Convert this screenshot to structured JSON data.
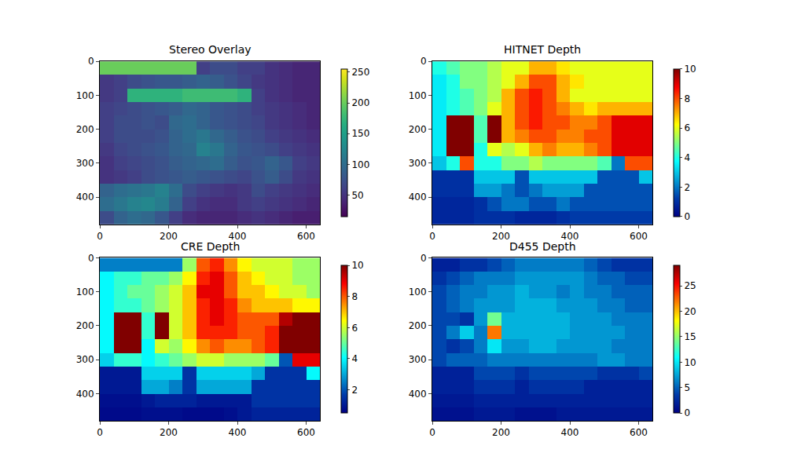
{
  "chart_data": [
    {
      "type": "heatmap",
      "title": "Stereo Overlay",
      "color": "viridis",
      "x": [
        20,
        60,
        100,
        140,
        180,
        220,
        260,
        300,
        340,
        380,
        420,
        460,
        500,
        540,
        580,
        620
      ],
      "y": [
        20,
        60,
        100,
        140,
        180,
        220,
        260,
        300,
        340,
        380,
        420,
        460
      ],
      "xlim": [
        0,
        640
      ],
      "ylim": [
        480,
        0
      ],
      "xticks": [
        0,
        200,
        400,
        600
      ],
      "yticks": [
        0,
        100,
        200,
        300,
        400
      ],
      "zlim": [
        15,
        255
      ],
      "zticks": [
        50,
        100,
        150,
        200,
        250
      ],
      "z": [
        [
          200,
          200,
          200,
          200,
          200,
          200,
          200,
          60,
          70,
          70,
          60,
          60,
          50,
          45,
          40,
          40
        ],
        [
          55,
          60,
          70,
          75,
          80,
          80,
          85,
          90,
          85,
          75,
          65,
          55,
          50,
          45,
          40,
          40
        ],
        [
          55,
          60,
          170,
          170,
          170,
          170,
          180,
          180,
          180,
          180,
          170,
          60,
          50,
          45,
          40,
          40
        ],
        [
          60,
          65,
          70,
          75,
          80,
          85,
          95,
          90,
          80,
          75,
          70,
          60,
          55,
          50,
          45,
          40
        ],
        [
          60,
          70,
          70,
          75,
          70,
          95,
          100,
          90,
          80,
          75,
          70,
          65,
          55,
          50,
          45,
          40
        ],
        [
          60,
          70,
          70,
          70,
          75,
          90,
          100,
          110,
          95,
          85,
          75,
          70,
          60,
          55,
          50,
          45
        ],
        [
          55,
          65,
          70,
          75,
          80,
          90,
          95,
          120,
          110,
          90,
          80,
          75,
          70,
          60,
          55,
          50
        ],
        [
          50,
          60,
          65,
          70,
          75,
          85,
          90,
          95,
          100,
          85,
          75,
          80,
          90,
          80,
          60,
          55
        ],
        [
          50,
          55,
          60,
          70,
          75,
          80,
          85,
          80,
          75,
          70,
          65,
          75,
          85,
          70,
          55,
          50
        ],
        [
          90,
          100,
          105,
          110,
          120,
          100,
          70,
          60,
          55,
          50,
          55,
          70,
          60,
          55,
          50,
          45
        ],
        [
          100,
          110,
          120,
          125,
          115,
          90,
          60,
          50,
          45,
          45,
          55,
          60,
          55,
          50,
          45,
          40
        ],
        [
          70,
          90,
          100,
          95,
          80,
          60,
          45,
          40,
          40,
          40,
          45,
          50,
          45,
          40,
          35,
          35
        ]
      ]
    },
    {
      "type": "heatmap",
      "title": "HITNET Depth",
      "color": "jet",
      "x": [
        20,
        60,
        100,
        140,
        180,
        220,
        260,
        300,
        340,
        380,
        420,
        460,
        500,
        540,
        580,
        620
      ],
      "y": [
        20,
        60,
        100,
        140,
        180,
        220,
        260,
        300,
        340,
        380,
        420,
        460
      ],
      "xlim": [
        0,
        640
      ],
      "ylim": [
        480,
        0
      ],
      "xticks": [
        0,
        200,
        400,
        600
      ],
      "yticks": [
        0,
        100,
        200,
        300,
        400
      ],
      "zlim": [
        0,
        10
      ],
      "zticks": [
        0,
        2,
        4,
        6,
        8,
        10
      ],
      "z": [
        [
          4,
          4.5,
          5,
          5,
          5.5,
          6,
          6,
          7,
          7,
          6.5,
          6,
          6,
          6,
          6,
          6,
          6
        ],
        [
          3.5,
          4,
          5,
          5,
          5.5,
          6,
          7,
          8,
          8,
          7,
          6.5,
          6,
          6,
          6,
          6,
          6
        ],
        [
          3.5,
          4,
          4.5,
          5,
          5.5,
          7,
          8,
          8.5,
          8,
          7,
          6,
          6,
          6,
          6,
          6,
          6
        ],
        [
          3.5,
          4,
          4.5,
          5,
          6,
          7,
          8,
          8.5,
          8,
          7.5,
          7,
          6.5,
          7,
          7,
          7,
          7
        ],
        [
          3.5,
          10,
          10,
          4.5,
          10,
          7,
          8,
          8.5,
          8,
          8,
          7.5,
          7.5,
          8,
          9,
          9,
          9
        ],
        [
          3.5,
          10,
          10,
          4.5,
          10,
          7,
          7.5,
          8,
          8,
          7.5,
          7.5,
          8,
          8,
          9,
          9,
          9
        ],
        [
          3.5,
          10,
          10,
          4,
          6,
          5.5,
          6,
          7,
          7.5,
          7,
          7,
          7.5,
          8,
          9,
          9,
          9
        ],
        [
          3,
          4,
          8,
          4,
          4,
          5,
          5,
          5.5,
          5,
          5,
          5,
          5,
          4.5,
          2,
          8,
          8
        ],
        [
          1,
          1,
          1,
          3,
          3,
          3,
          1.5,
          3,
          3,
          3,
          3,
          3,
          1.5,
          1.5,
          1.5,
          3
        ],
        [
          1,
          1,
          1,
          2.5,
          2.5,
          2,
          1.5,
          2,
          2.5,
          2.5,
          2.5,
          1.5,
          1.5,
          1.5,
          1.5,
          1.5
        ],
        [
          0.8,
          0.8,
          0.8,
          1,
          1.5,
          2,
          2,
          1.5,
          1.5,
          2,
          1.5,
          1.5,
          1.5,
          1.5,
          1.5,
          1.5
        ],
        [
          0.8,
          0.8,
          0.8,
          1,
          1,
          1,
          0.8,
          0.8,
          0.8,
          1,
          1.2,
          1.2,
          1.2,
          1.2,
          1.2,
          1.2
        ]
      ]
    },
    {
      "type": "heatmap",
      "title": "CRE Depth",
      "color": "jet",
      "x": [
        20,
        60,
        100,
        140,
        180,
        220,
        260,
        300,
        340,
        380,
        420,
        460,
        500,
        540,
        580,
        620
      ],
      "y": [
        20,
        60,
        100,
        140,
        180,
        220,
        260,
        300,
        340,
        380,
        420,
        460
      ],
      "xlim": [
        0,
        640
      ],
      "ylim": [
        480,
        0
      ],
      "xticks": [
        0,
        200,
        400,
        600
      ],
      "yticks": [
        0,
        100,
        200,
        300,
        400
      ],
      "zlim": [
        0.5,
        10
      ],
      "zticks": [
        2,
        4,
        6,
        8,
        10
      ],
      "z": [
        [
          2.5,
          2.5,
          2.5,
          2.5,
          2.5,
          2.5,
          5.5,
          8,
          8.5,
          7.5,
          6.5,
          6,
          6,
          6,
          5.5,
          5.5
        ],
        [
          4,
          4.5,
          4.5,
          5,
          5,
          5.5,
          6.5,
          8.5,
          9,
          8,
          7,
          6.5,
          6,
          6,
          5.5,
          5.5
        ],
        [
          4,
          4.5,
          5,
          5,
          5.5,
          6,
          7,
          9,
          9,
          8,
          7,
          7,
          6.5,
          6,
          6,
          5.5
        ],
        [
          4,
          4.5,
          4.5,
          5,
          5.5,
          6,
          7,
          8.5,
          9,
          8.5,
          7.5,
          7,
          7,
          7,
          6.5,
          6.5
        ],
        [
          4,
          10,
          10,
          4.5,
          10,
          6,
          7,
          8.5,
          9,
          8.5,
          8,
          8,
          8,
          9.5,
          10,
          10
        ],
        [
          4,
          10,
          10,
          4.5,
          10,
          6,
          7,
          8.5,
          8.5,
          8.5,
          8,
          8,
          8.5,
          10,
          10,
          10
        ],
        [
          4,
          10,
          10,
          4,
          6,
          5.5,
          6.5,
          7.5,
          8,
          7.5,
          7.5,
          8,
          8.5,
          10,
          10,
          10
        ],
        [
          3.5,
          4.5,
          4.5,
          4,
          4.5,
          5,
          5.5,
          6,
          6,
          5.5,
          5.5,
          5.5,
          5,
          2,
          9,
          9
        ],
        [
          1,
          1,
          1,
          3.5,
          3.5,
          3.5,
          1.5,
          3.5,
          3.5,
          3.5,
          3.5,
          3,
          1.5,
          1.5,
          1.5,
          4
        ],
        [
          1,
          1,
          1,
          3,
          3,
          2.5,
          1.5,
          3,
          3,
          3,
          3,
          1.5,
          1.5,
          1.5,
          1.5,
          1.5
        ],
        [
          0.8,
          0.8,
          0.8,
          1,
          1.2,
          1.2,
          1.2,
          1,
          1,
          1,
          1,
          1.5,
          1.5,
          1.5,
          1.5,
          1.5
        ],
        [
          0.7,
          0.7,
          0.7,
          0.8,
          0.8,
          0.8,
          0.7,
          0.7,
          0.7,
          0.8,
          1,
          1.2,
          1.2,
          1.2,
          1.2,
          1.2
        ]
      ]
    },
    {
      "type": "heatmap",
      "title": "D455 Depth",
      "color": "jet",
      "x": [
        20,
        60,
        100,
        140,
        180,
        220,
        260,
        300,
        340,
        380,
        420,
        460,
        500,
        540,
        580,
        620
      ],
      "y": [
        20,
        60,
        100,
        140,
        180,
        220,
        260,
        300,
        340,
        380,
        420,
        460
      ],
      "xlim": [
        0,
        640
      ],
      "ylim": [
        480,
        0
      ],
      "xticks": [
        0,
        200,
        400,
        600
      ],
      "yticks": [
        0,
        100,
        200,
        300,
        400
      ],
      "zlim": [
        0,
        29
      ],
      "zticks": [
        0,
        5,
        10,
        15,
        20,
        25
      ],
      "z": [
        [
          2,
          2,
          3,
          3,
          4,
          5,
          6,
          6,
          6,
          6,
          6,
          5,
          4,
          3,
          3,
          3
        ],
        [
          3,
          4,
          5,
          6,
          6,
          6,
          7,
          7,
          7,
          7,
          7,
          6,
          5,
          5,
          4,
          4
        ],
        [
          4,
          5,
          6,
          6,
          7,
          7,
          8,
          7,
          7,
          6,
          7,
          6,
          6,
          5,
          5,
          5
        ],
        [
          4,
          5,
          6,
          7,
          7,
          7,
          8,
          8,
          8,
          7,
          7,
          7,
          6,
          6,
          5,
          5
        ],
        [
          4,
          4,
          3,
          7,
          14,
          8,
          8,
          8,
          8,
          8,
          7,
          7,
          7,
          6,
          6,
          6
        ],
        [
          4,
          6,
          9,
          6,
          22,
          8,
          8,
          8,
          8,
          8,
          7,
          7,
          7,
          7,
          6,
          6
        ],
        [
          4,
          3,
          4,
          6,
          10,
          7,
          7,
          8,
          8,
          7,
          7,
          7,
          7,
          6,
          6,
          6
        ],
        [
          4,
          5,
          5,
          5,
          6,
          6,
          6,
          6,
          6,
          6,
          6,
          6,
          7,
          7,
          6,
          6
        ],
        [
          2,
          2,
          2,
          4,
          4,
          4,
          3,
          4,
          4,
          4,
          4,
          4,
          3,
          3,
          3,
          4
        ],
        [
          2,
          2,
          2,
          3,
          3,
          3,
          2,
          3,
          3,
          3,
          3,
          2,
          2,
          2,
          2,
          2
        ],
        [
          1.5,
          1.5,
          1.5,
          2,
          2,
          2,
          2,
          2,
          2,
          2,
          2,
          2,
          2,
          2,
          2,
          2
        ],
        [
          1,
          1,
          1,
          1.5,
          1.5,
          1.5,
          1,
          1,
          1,
          1.5,
          1.5,
          1.5,
          1.5,
          1.5,
          1.5,
          1.5
        ]
      ]
    }
  ]
}
